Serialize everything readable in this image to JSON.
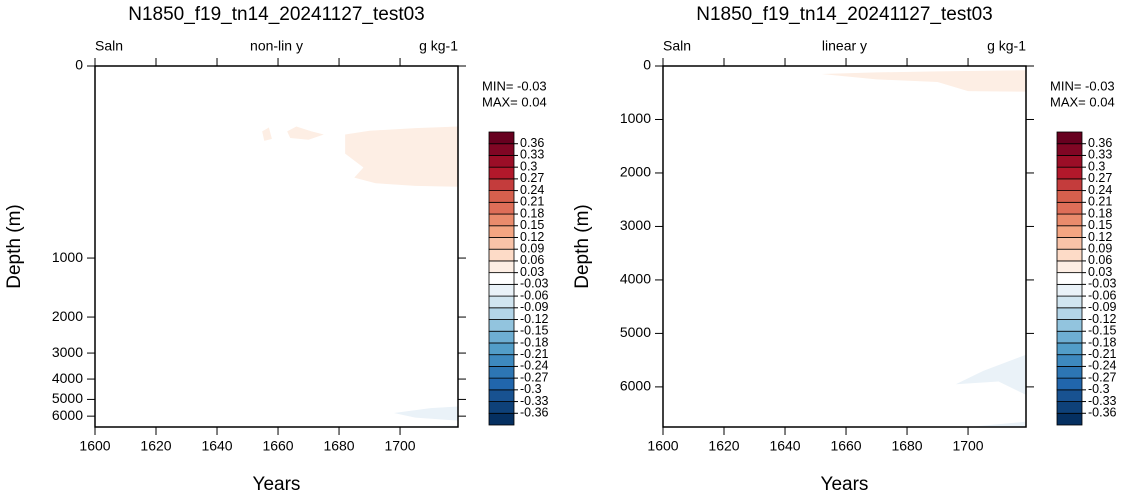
{
  "chart_data": [
    {
      "type": "contour",
      "title": "N1850_f19_tn14_20241127_test03",
      "left_string": "Saln",
      "center_string": "non-lin y",
      "right_string": "g kg-1",
      "stats": [
        "MIN= -0.03",
        "MAX=  0.04"
      ],
      "xlabel": "Years",
      "ylabel": "Depth (m)",
      "xlim": [
        1600,
        1719
      ],
      "xticks": [
        1600,
        1620,
        1640,
        1660,
        1680,
        1700
      ],
      "ylim": [
        0,
        6750
      ],
      "yreverse": true,
      "yscale": "nonlinear",
      "yticks": [
        0,
        1000,
        2000,
        3000,
        4000,
        5000,
        6000
      ],
      "levels": [
        -0.36,
        -0.33,
        -0.3,
        -0.27,
        -0.24,
        -0.21,
        -0.18,
        -0.15,
        -0.12,
        -0.09,
        -0.06,
        -0.03,
        0.03,
        0.06,
        0.09,
        0.12,
        0.15,
        0.18,
        0.21,
        0.24,
        0.27,
        0.3,
        0.33,
        0.36
      ],
      "colors": [
        "#053061",
        "#0e4179",
        "#185291",
        "#2166ac",
        "#2d76b4",
        "#3d89bf",
        "#529dc8",
        "#6eaed2",
        "#92c4de",
        "#b3d5e8",
        "#d1e5f0",
        "#eaf2f8",
        "#ffffff",
        "#fdeee4",
        "#fddbc7",
        "#f9c3a8",
        "#f4a582",
        "#ea8b6c",
        "#de6e58",
        "#d6604d",
        "#c43c3c",
        "#b2182b",
        "#9b0e27",
        "#800624",
        "#67001f"
      ],
      "regions": [
        {
          "color": "#fdeee4",
          "x": [
            1654.8,
            1657,
            1658,
            1655.5
          ],
          "y": [
            150,
            138,
            175,
            182
          ]
        },
        {
          "color": "#fdeee4",
          "x": [
            1663,
            1666,
            1671,
            1675,
            1670,
            1664
          ],
          "y": [
            150,
            135,
            150,
            160,
            178,
            172
          ]
        },
        {
          "color": "#fdeee4",
          "x": [
            1682,
            1690,
            1705,
            1719,
            1719,
            1705,
            1692,
            1685,
            1688,
            1682
          ],
          "y": [
            160,
            148,
            140,
            135,
            390,
            385,
            370,
            340,
            290,
            230
          ]
        },
        {
          "color": "#eaf2f8",
          "x": [
            1698,
            1710,
            1719,
            1719,
            1705
          ],
          "y": [
            5800,
            5500,
            5400,
            6300,
            6100
          ]
        },
        {
          "color": "#eaf2f8",
          "x": [
            1700,
            1719,
            1719,
            1700
          ],
          "y": [
            6700,
            6650,
            6750,
            6750
          ]
        }
      ]
    },
    {
      "type": "contour",
      "title": "N1850_f19_tn14_20241127_test03",
      "left_string": "Saln",
      "center_string": "linear y",
      "right_string": "g kg-1",
      "stats": [
        "MIN= -0.03",
        "MAX=  0.04"
      ],
      "xlabel": "Years",
      "ylabel": "Depth (m)",
      "xlim": [
        1600,
        1719
      ],
      "xticks": [
        1600,
        1620,
        1640,
        1660,
        1680,
        1700
      ],
      "ylim": [
        0,
        6750
      ],
      "yreverse": true,
      "yscale": "linear",
      "yticks": [
        0,
        1000,
        2000,
        3000,
        4000,
        5000,
        6000
      ],
      "levels": [
        -0.36,
        -0.33,
        -0.3,
        -0.27,
        -0.24,
        -0.21,
        -0.18,
        -0.15,
        -0.12,
        -0.09,
        -0.06,
        -0.03,
        0.03,
        0.06,
        0.09,
        0.12,
        0.15,
        0.18,
        0.21,
        0.24,
        0.27,
        0.3,
        0.33,
        0.36
      ],
      "colors": [
        "#053061",
        "#0e4179",
        "#185291",
        "#2166ac",
        "#2d76b4",
        "#3d89bf",
        "#529dc8",
        "#6eaed2",
        "#92c4de",
        "#b3d5e8",
        "#d1e5f0",
        "#eaf2f8",
        "#ffffff",
        "#fdeee4",
        "#fddbc7",
        "#f9c3a8",
        "#f4a582",
        "#ea8b6c",
        "#de6e58",
        "#d6604d",
        "#c43c3c",
        "#b2182b",
        "#9b0e27",
        "#800624",
        "#67001f"
      ],
      "regions": [
        {
          "color": "#fdeee4",
          "x": [
            1652,
            1670,
            1690,
            1719,
            1719,
            1700,
            1690,
            1670
          ],
          "y": [
            150,
            120,
            100,
            80,
            480,
            470,
            300,
            250
          ]
        },
        {
          "color": "#eaf2f8",
          "x": [
            1696,
            1705,
            1719,
            1719,
            1710
          ],
          "y": [
            5950,
            5700,
            5400,
            6150,
            5900
          ]
        },
        {
          "color": "#eaf2f8",
          "x": [
            1700,
            1719,
            1719
          ],
          "y": [
            6750,
            6650,
            6750
          ]
        }
      ]
    }
  ]
}
